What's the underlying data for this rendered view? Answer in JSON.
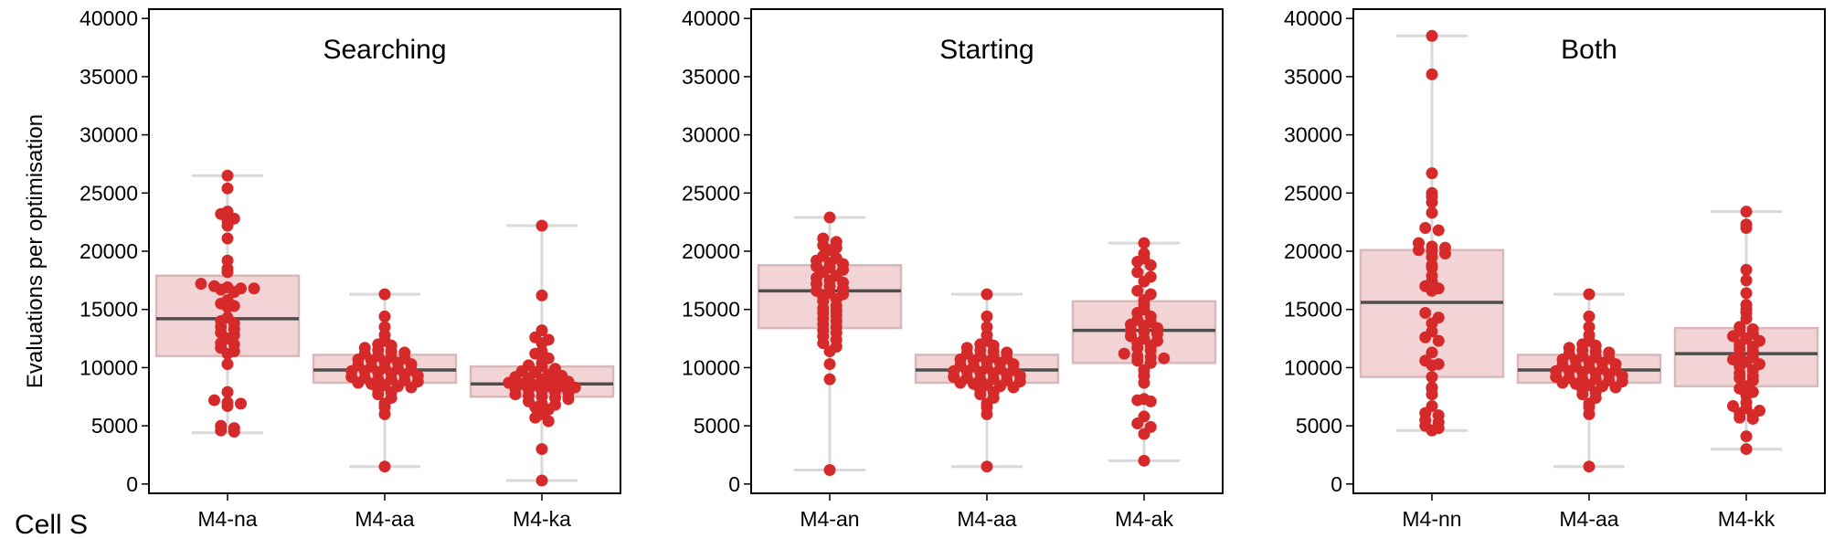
{
  "figure": {
    "ylabel": "Evaluations per optimisation",
    "corner_label": "Cell S",
    "y_ticks": [
      0,
      5000,
      10000,
      15000,
      20000,
      25000,
      30000,
      35000,
      40000
    ],
    "colors": {
      "point": "#d62a2a",
      "box_fill": "#f3d4d6",
      "box_edge": "#d9b8ba",
      "median": "#4d4d4d",
      "whisker": "#d9d9d9",
      "frame": "#000000"
    }
  },
  "chart_data": [
    {
      "type": "box-swarm",
      "title": "Searching",
      "ylim": [
        -800,
        40800
      ],
      "categories": [
        "M4-na",
        "M4-aa",
        "M4-ka"
      ],
      "boxes": [
        {
          "category": "M4-na",
          "whisker_low": 4400,
          "q1": 11000,
          "median": 14200,
          "q3": 17900,
          "whisker_high": 26500,
          "points": [
            26500,
            25400,
            23200,
            23400,
            22800,
            22600,
            22200,
            21100,
            19200,
            18500,
            18200,
            17200,
            17000,
            16900,
            16800,
            16800,
            16700,
            16500,
            15800,
            15500,
            15300,
            15200,
            14300,
            14000,
            13800,
            13500,
            13300,
            13000,
            12800,
            12500,
            12100,
            12000,
            11700,
            11400,
            11200,
            10300,
            7900,
            7200,
            7000,
            6900,
            6700,
            5000,
            4800,
            4600,
            4500
          ]
        },
        {
          "category": "M4-aa",
          "whisker_low": 1500,
          "q1": 8700,
          "median": 9800,
          "q3": 11100,
          "whisker_high": 16300,
          "points": [
            16300,
            14400,
            13500,
            12800,
            12300,
            12000,
            11900,
            11700,
            11500,
            11400,
            11300,
            11200,
            11000,
            10900,
            10800,
            10700,
            10600,
            10500,
            10400,
            10300,
            10200,
            10100,
            10000,
            9900,
            9800,
            9700,
            9700,
            9600,
            9500,
            9400,
            9300,
            9200,
            9100,
            9000,
            9000,
            8900,
            8800,
            8700,
            8600,
            8500,
            8400,
            8300,
            8100,
            7900,
            7700,
            7400,
            6900,
            6600,
            6000,
            1500
          ]
        },
        {
          "category": "M4-ka",
          "whisker_low": 300,
          "q1": 7500,
          "median": 8600,
          "q3": 10100,
          "whisker_high": 22200,
          "points": [
            22200,
            16200,
            13200,
            12600,
            12400,
            12100,
            11400,
            11200,
            10800,
            10400,
            10200,
            10100,
            9900,
            9700,
            9600,
            9400,
            9300,
            9200,
            9100,
            9000,
            8900,
            8800,
            8700,
            8600,
            8500,
            8400,
            8400,
            8300,
            8200,
            8100,
            8000,
            7900,
            7800,
            7700,
            7600,
            7500,
            7400,
            7300,
            7100,
            6900,
            6800,
            6600,
            6400,
            6000,
            5700,
            5400,
            3000,
            300
          ]
        }
      ]
    },
    {
      "type": "box-swarm",
      "title": "Starting",
      "ylim": [
        -800,
        40800
      ],
      "categories": [
        "M4-an",
        "M4-aa",
        "M4-ak"
      ],
      "boxes": [
        {
          "category": "M4-an",
          "whisker_low": 1200,
          "q1": 13400,
          "median": 16600,
          "q3": 18800,
          "whisker_high": 22900,
          "points": [
            22900,
            21100,
            20800,
            20500,
            20300,
            20100,
            19600,
            19400,
            19200,
            19000,
            18900,
            18700,
            18600,
            18400,
            18200,
            17900,
            17700,
            17500,
            17300,
            17200,
            17000,
            16800,
            16600,
            16400,
            16300,
            16100,
            15900,
            15700,
            15300,
            15100,
            14900,
            14700,
            14500,
            14200,
            14000,
            13700,
            13500,
            13200,
            13000,
            12700,
            12400,
            12100,
            11800,
            11400,
            10300,
            9000,
            1200
          ]
        },
        {
          "category": "M4-aa",
          "whisker_low": 1500,
          "q1": 8700,
          "median": 9800,
          "q3": 11100,
          "whisker_high": 16300,
          "points": [
            16300,
            14400,
            13500,
            12800,
            12300,
            12000,
            11900,
            11700,
            11500,
            11400,
            11300,
            11200,
            11000,
            10900,
            10800,
            10700,
            10600,
            10500,
            10400,
            10300,
            10200,
            10100,
            10000,
            9900,
            9800,
            9700,
            9700,
            9600,
            9500,
            9400,
            9300,
            9200,
            9100,
            9000,
            9000,
            8900,
            8800,
            8700,
            8600,
            8500,
            8400,
            8300,
            8100,
            7900,
            7700,
            7400,
            6900,
            6600,
            6000,
            1500
          ]
        },
        {
          "category": "M4-ak",
          "whisker_low": 2000,
          "q1": 10400,
          "median": 13200,
          "q3": 15700,
          "whisker_high": 20700,
          "points": [
            20700,
            19800,
            19400,
            19100,
            18800,
            18200,
            17800,
            17400,
            16600,
            16300,
            15800,
            15400,
            15000,
            14700,
            14400,
            14100,
            13900,
            13700,
            13600,
            13400,
            13200,
            13100,
            12900,
            12700,
            12500,
            12300,
            12100,
            11900,
            11700,
            11500,
            11200,
            11000,
            10900,
            10800,
            10600,
            10400,
            9800,
            9300,
            8700,
            7300,
            7200,
            7100,
            5800,
            5200,
            4900,
            4300,
            2000
          ]
        }
      ]
    },
    {
      "type": "box-swarm",
      "title": "Both",
      "ylim": [
        -800,
        40800
      ],
      "categories": [
        "M4-nn",
        "M4-aa",
        "M4-kk"
      ],
      "boxes": [
        {
          "category": "M4-nn",
          "whisker_low": 4600,
          "q1": 9200,
          "median": 15600,
          "q3": 20100,
          "whisker_high": 38500,
          "points": [
            38500,
            35200,
            26700,
            25000,
            24700,
            24200,
            23300,
            22000,
            21800,
            20700,
            20400,
            20300,
            20100,
            20000,
            19800,
            19500,
            18800,
            18600,
            17900,
            17400,
            17000,
            16800,
            16600,
            14700,
            14300,
            13800,
            13100,
            12600,
            12300,
            11300,
            10600,
            10300,
            10200,
            9200,
            8300,
            8200,
            7700,
            6700,
            6100,
            5900,
            5500,
            5300,
            5000,
            4800,
            4600
          ]
        },
        {
          "category": "M4-aa",
          "whisker_low": 1500,
          "q1": 8700,
          "median": 9800,
          "q3": 11100,
          "whisker_high": 16300,
          "points": [
            16300,
            14400,
            13500,
            12800,
            12300,
            12000,
            11900,
            11700,
            11500,
            11400,
            11300,
            11200,
            11000,
            10900,
            10800,
            10700,
            10600,
            10500,
            10400,
            10300,
            10200,
            10100,
            10000,
            9900,
            9800,
            9700,
            9700,
            9600,
            9500,
            9400,
            9300,
            9200,
            9100,
            9000,
            9000,
            8900,
            8800,
            8700,
            8600,
            8500,
            8400,
            8300,
            8100,
            7900,
            7700,
            7400,
            6900,
            6600,
            6000,
            1500
          ]
        },
        {
          "category": "M4-kk",
          "whisker_low": 3000,
          "q1": 8400,
          "median": 11200,
          "q3": 13400,
          "whisker_high": 23400,
          "points": [
            23400,
            22300,
            22000,
            18400,
            17500,
            16400,
            15400,
            15000,
            14700,
            14200,
            13500,
            13300,
            13100,
            12900,
            12700,
            12500,
            12300,
            12000,
            11800,
            11600,
            11400,
            11100,
            10900,
            10700,
            10500,
            10300,
            10100,
            9800,
            9500,
            9300,
            9100,
            8900,
            8400,
            8200,
            7900,
            7600,
            7000,
            6700,
            6500,
            6300,
            6100,
            5900,
            5700,
            5600,
            4100,
            3000
          ]
        }
      ]
    }
  ]
}
